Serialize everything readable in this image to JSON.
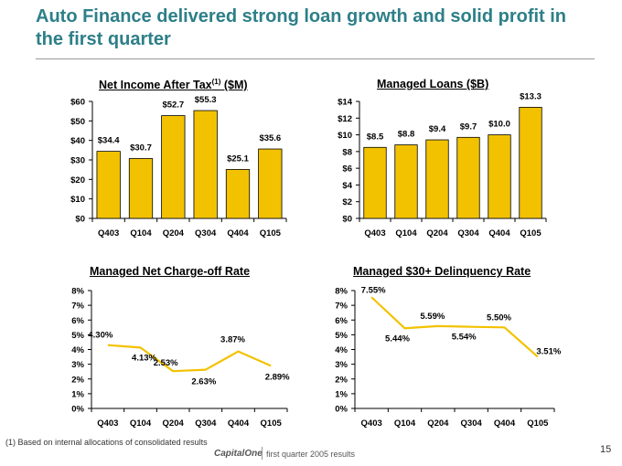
{
  "title": "Auto Finance delivered strong loan growth and solid profit in the first quarter",
  "chart_titles": {
    "net_income_main": "Net Income After Tax",
    "net_income_sup": "(1)",
    "net_income_unit": " ($M)",
    "managed_loans": "Managed Loans ($B)",
    "charge_off": "Managed Net Charge-off Rate",
    "delinquency": "Managed $30+ Delinquency Rate"
  },
  "footer": {
    "footnote": "(1) Based on internal allocations of consolidated results",
    "brand": "CapitalOne",
    "tagline": "first quarter 2005 results",
    "page_number": "15"
  },
  "colors": {
    "title": "#2d7f88",
    "bar_fill": "#f2c200",
    "bar_stroke": "#000000",
    "line": "#f2c200"
  },
  "chart_data": [
    {
      "type": "bar",
      "title": "Net Income After Tax(1) ($M)",
      "categories": [
        "Q403",
        "Q104",
        "Q204",
        "Q304",
        "Q404",
        "Q105"
      ],
      "values": [
        34.4,
        30.7,
        52.7,
        55.3,
        25.1,
        35.6
      ],
      "labels": [
        "$34.4",
        "$30.7",
        "$52.7",
        "$55.3",
        "$25.1",
        "$35.6"
      ],
      "yticks": [
        0,
        10,
        20,
        30,
        40,
        50,
        60
      ],
      "ytick_labels": [
        "$0",
        "$10",
        "$20",
        "$30",
        "$40",
        "$50",
        "$60"
      ],
      "ylim": [
        0,
        60
      ]
    },
    {
      "type": "bar",
      "title": "Managed Loans ($B)",
      "categories": [
        "Q403",
        "Q104",
        "Q204",
        "Q304",
        "Q404",
        "Q105"
      ],
      "values": [
        8.5,
        8.8,
        9.4,
        9.7,
        10.0,
        13.3
      ],
      "labels": [
        "$8.5",
        "$8.8",
        "$9.4",
        "$9.7",
        "$10.0",
        "$13.3"
      ],
      "yticks": [
        0,
        2,
        4,
        6,
        8,
        10,
        12,
        14
      ],
      "ytick_labels": [
        "$0",
        "$2",
        "$4",
        "$6",
        "$8",
        "$10",
        "$12",
        "$14"
      ],
      "ylim": [
        0,
        14
      ]
    },
    {
      "type": "line",
      "title": "Managed Net Charge-off Rate",
      "categories": [
        "Q403",
        "Q104",
        "Q204",
        "Q304",
        "Q404",
        "Q105"
      ],
      "values": [
        4.3,
        4.13,
        2.53,
        2.63,
        3.87,
        2.89
      ],
      "labels": [
        "4.30%",
        "4.13%",
        "2.53%",
        "2.63%",
        "3.87%",
        "2.89%"
      ],
      "yticks": [
        0,
        1,
        2,
        3,
        4,
        5,
        6,
        7,
        8
      ],
      "ytick_labels": [
        "0%",
        "1%",
        "2%",
        "3%",
        "4%",
        "5%",
        "6%",
        "7%",
        "8%"
      ],
      "ylim": [
        0,
        8
      ]
    },
    {
      "type": "line",
      "title": "Managed $30+ Delinquency Rate",
      "categories": [
        "Q403",
        "Q104",
        "Q204",
        "Q304",
        "Q404",
        "Q105"
      ],
      "values": [
        7.55,
        5.44,
        5.59,
        5.54,
        5.5,
        3.51
      ],
      "labels": [
        "7.55%",
        "5.44%",
        "5.59%",
        "5.54%",
        "5.50%",
        "3.51%"
      ],
      "yticks": [
        0,
        1,
        2,
        3,
        4,
        5,
        6,
        7,
        8
      ],
      "ytick_labels": [
        "0%",
        "1%",
        "2%",
        "3%",
        "4%",
        "5%",
        "6%",
        "7%",
        "8%"
      ],
      "ylim": [
        0,
        8
      ]
    }
  ]
}
